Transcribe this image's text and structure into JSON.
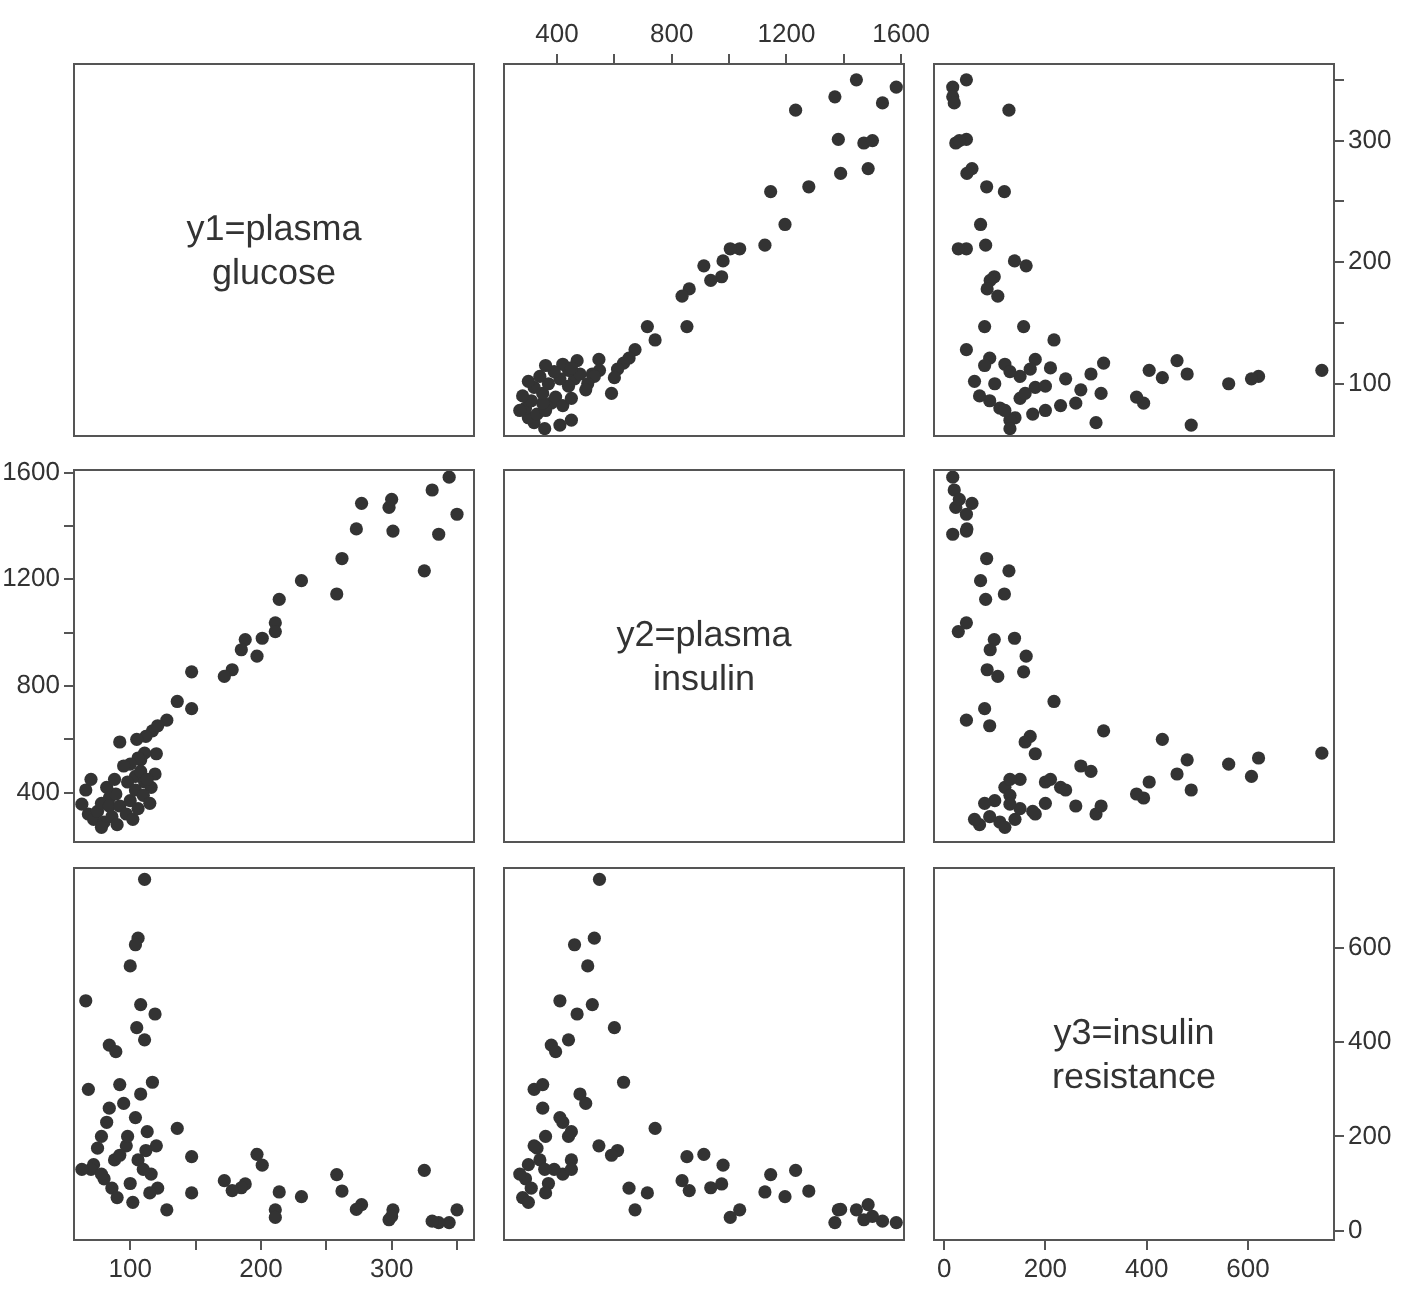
{
  "chart_data": [
    {
      "type": "other",
      "annotations": [
        "y1=plasma glucose"
      ]
    },
    {
      "type": "scatter",
      "color": "#333333",
      "marker": "circle",
      "xlim": [
        215,
        1610
      ],
      "ylim": [
        57,
        363
      ],
      "xticks": [
        400,
        {
          "value": 600,
          "label": null
        },
        800,
        {
          "value": 1000,
          "label": null
        },
        1200,
        {
          "value": 1400,
          "label": null
        },
        1600
      ],
      "tick_labels": "x",
      "x": [
        1444,
        1583,
        1369,
        1535,
        1232,
        1381,
        1470,
        1500,
        1485,
        1389,
        1278,
        1145,
        1195,
        1125,
        1037,
        1004,
        979,
        912,
        974,
        936,
        861,
        836,
        853,
        742,
        715,
        632,
        672,
        651,
        546,
        611,
        548,
        523,
        530,
        461,
        507,
        410,
        470,
        440,
        600,
        380,
        395,
        320,
        300,
        330,
        360,
        290,
        420,
        350,
        310,
        450,
        280,
        350,
        420,
        500,
        320,
        440,
        370,
        300,
        410,
        340,
        480,
        390,
        450,
        360,
        450,
        270,
        590,
        357
      ],
      "values": [
        350,
        344,
        336,
        331,
        325,
        301,
        298,
        300,
        277,
        273,
        262,
        258,
        231,
        214,
        211,
        211,
        201,
        197,
        188,
        185,
        178,
        172,
        147,
        136,
        147,
        117,
        128,
        121,
        120,
        112,
        111,
        108,
        106,
        104,
        100,
        66,
        119,
        111,
        105,
        84,
        89,
        68,
        72,
        75,
        78,
        80,
        82,
        84,
        86,
        88,
        90,
        92,
        116,
        95,
        97,
        98,
        100,
        102,
        104,
        106,
        108,
        110,
        113,
        115,
        70,
        78,
        92,
        63
      ]
    },
    {
      "type": "scatter",
      "color": "#333333",
      "marker": "circle",
      "xlim": [
        -20,
        770
      ],
      "ylim": [
        57,
        363
      ],
      "yticks": [
        100,
        {
          "value": 150,
          "label": null
        },
        200,
        {
          "value": 250,
          "label": null
        },
        300,
        {
          "value": 350,
          "label": null
        }
      ],
      "tick_labels": "y",
      "x": [
        44,
        17,
        17,
        20,
        128,
        44,
        23,
        30,
        55,
        45,
        84,
        119,
        72,
        82,
        44,
        28,
        139,
        162,
        99,
        91,
        85,
        106,
        157,
        217,
        80,
        315,
        44,
        90,
        180,
        170,
        746,
        480,
        621,
        607,
        562,
        488,
        460,
        405,
        431,
        394,
        380,
        300,
        140,
        175,
        200,
        110,
        230,
        260,
        90,
        150,
        70,
        310,
        120,
        270,
        180,
        200,
        100,
        60,
        240,
        150,
        290,
        130,
        210,
        80,
        130,
        120,
        160,
        130
      ],
      "values": [
        350,
        344,
        336,
        331,
        325,
        301,
        298,
        300,
        277,
        273,
        262,
        258,
        231,
        214,
        211,
        211,
        201,
        197,
        188,
        185,
        178,
        172,
        147,
        136,
        147,
        117,
        128,
        121,
        120,
        112,
        111,
        108,
        106,
        104,
        100,
        66,
        119,
        111,
        105,
        84,
        89,
        68,
        72,
        75,
        78,
        80,
        82,
        84,
        86,
        88,
        90,
        92,
        116,
        95,
        97,
        98,
        100,
        102,
        104,
        106,
        108,
        110,
        113,
        115,
        70,
        78,
        92,
        63
      ]
    },
    {
      "type": "scatter",
      "color": "#333333",
      "marker": "circle",
      "xlim": [
        57,
        363
      ],
      "ylim": [
        215,
        1610
      ],
      "yticks": [
        400,
        {
          "value": 600,
          "label": null
        },
        800,
        {
          "value": 1000,
          "label": null
        },
        1200,
        {
          "value": 1400,
          "label": null
        },
        1600
      ],
      "tick_labels": "y",
      "x": [
        350,
        344,
        336,
        331,
        325,
        301,
        298,
        300,
        277,
        273,
        262,
        258,
        231,
        214,
        211,
        211,
        201,
        197,
        188,
        185,
        178,
        172,
        147,
        136,
        147,
        117,
        128,
        121,
        120,
        112,
        111,
        108,
        106,
        104,
        100,
        66,
        119,
        111,
        105,
        84,
        89,
        68,
        72,
        75,
        78,
        80,
        82,
        84,
        86,
        88,
        90,
        92,
        116,
        95,
        97,
        98,
        100,
        102,
        104,
        106,
        108,
        110,
        113,
        115,
        70,
        78,
        92,
        63
      ],
      "values": [
        1444,
        1583,
        1369,
        1535,
        1232,
        1381,
        1470,
        1500,
        1485,
        1389,
        1278,
        1145,
        1195,
        1125,
        1037,
        1004,
        979,
        912,
        974,
        936,
        861,
        836,
        853,
        742,
        715,
        632,
        672,
        651,
        546,
        611,
        548,
        523,
        530,
        461,
        507,
        410,
        470,
        440,
        600,
        380,
        395,
        320,
        300,
        330,
        360,
        290,
        420,
        350,
        310,
        450,
        280,
        350,
        420,
        500,
        320,
        440,
        370,
        300,
        410,
        340,
        480,
        390,
        450,
        360,
        450,
        270,
        590,
        357
      ]
    },
    {
      "type": "other",
      "annotations": [
        "y2=plasma insulin"
      ]
    },
    {
      "type": "scatter",
      "color": "#333333",
      "marker": "circle",
      "xlim": [
        -20,
        770
      ],
      "ylim": [
        215,
        1610
      ],
      "tick_labels": false,
      "x": [
        44,
        17,
        17,
        20,
        128,
        44,
        23,
        30,
        55,
        45,
        84,
        119,
        72,
        82,
        44,
        28,
        139,
        162,
        99,
        91,
        85,
        106,
        157,
        217,
        80,
        315,
        44,
        90,
        180,
        170,
        746,
        480,
        621,
        607,
        562,
        488,
        460,
        405,
        431,
        394,
        380,
        300,
        140,
        175,
        200,
        110,
        230,
        260,
        90,
        150,
        70,
        310,
        120,
        270,
        180,
        200,
        100,
        60,
        240,
        150,
        290,
        130,
        210,
        80,
        130,
        120,
        160,
        130
      ],
      "values": [
        1444,
        1583,
        1369,
        1535,
        1232,
        1381,
        1470,
        1500,
        1485,
        1389,
        1278,
        1145,
        1195,
        1125,
        1037,
        1004,
        979,
        912,
        974,
        936,
        861,
        836,
        853,
        742,
        715,
        632,
        672,
        651,
        546,
        611,
        548,
        523,
        530,
        461,
        507,
        410,
        470,
        440,
        600,
        380,
        395,
        320,
        300,
        330,
        360,
        290,
        420,
        350,
        310,
        450,
        280,
        350,
        420,
        500,
        320,
        440,
        370,
        300,
        410,
        340,
        480,
        390,
        450,
        360,
        450,
        270,
        590,
        357
      ]
    },
    {
      "type": "scatter",
      "color": "#333333",
      "marker": "circle",
      "xlim": [
        57,
        363
      ],
      "ylim": [
        -20,
        770
      ],
      "xticks": [
        100,
        {
          "value": 150,
          "label": null
        },
        200,
        {
          "value": 250,
          "label": null
        },
        300,
        {
          "value": 350,
          "label": null
        }
      ],
      "tick_labels": "x",
      "x": [
        350,
        344,
        336,
        331,
        325,
        301,
        298,
        300,
        277,
        273,
        262,
        258,
        231,
        214,
        211,
        211,
        201,
        197,
        188,
        185,
        178,
        172,
        147,
        136,
        147,
        117,
        128,
        121,
        120,
        112,
        111,
        108,
        106,
        104,
        100,
        66,
        119,
        111,
        105,
        84,
        89,
        68,
        72,
        75,
        78,
        80,
        82,
        84,
        86,
        88,
        90,
        92,
        116,
        95,
        97,
        98,
        100,
        102,
        104,
        106,
        108,
        110,
        113,
        115,
        70,
        78,
        92,
        63
      ],
      "values": [
        44,
        17,
        17,
        20,
        128,
        44,
        23,
        30,
        55,
        45,
        84,
        119,
        72,
        82,
        44,
        28,
        139,
        162,
        99,
        91,
        85,
        106,
        157,
        217,
        80,
        315,
        44,
        90,
        180,
        170,
        746,
        480,
        621,
        607,
        562,
        488,
        460,
        405,
        431,
        394,
        380,
        300,
        140,
        175,
        200,
        110,
        230,
        260,
        90,
        150,
        70,
        310,
        120,
        270,
        180,
        200,
        100,
        60,
        240,
        150,
        290,
        130,
        210,
        80,
        130,
        120,
        160,
        130
      ]
    },
    {
      "type": "scatter",
      "color": "#333333",
      "marker": "circle",
      "xlim": [
        215,
        1610
      ],
      "ylim": [
        -20,
        770
      ],
      "tick_labels": false,
      "x": [
        1444,
        1583,
        1369,
        1535,
        1232,
        1381,
        1470,
        1500,
        1485,
        1389,
        1278,
        1145,
        1195,
        1125,
        1037,
        1004,
        979,
        912,
        974,
        936,
        861,
        836,
        853,
        742,
        715,
        632,
        672,
        651,
        546,
        611,
        548,
        523,
        530,
        461,
        507,
        410,
        470,
        440,
        600,
        380,
        395,
        320,
        300,
        330,
        360,
        290,
        420,
        350,
        310,
        450,
        280,
        350,
        420,
        500,
        320,
        440,
        370,
        300,
        410,
        340,
        480,
        390,
        450,
        360,
        450,
        270,
        590,
        357
      ],
      "values": [
        44,
        17,
        17,
        20,
        128,
        44,
        23,
        30,
        55,
        45,
        84,
        119,
        72,
        82,
        44,
        28,
        139,
        162,
        99,
        91,
        85,
        106,
        157,
        217,
        80,
        315,
        44,
        90,
        180,
        170,
        746,
        480,
        621,
        607,
        562,
        488,
        460,
        405,
        431,
        394,
        380,
        300,
        140,
        175,
        200,
        110,
        230,
        260,
        90,
        150,
        70,
        310,
        120,
        270,
        180,
        200,
        100,
        60,
        240,
        150,
        290,
        130,
        210,
        80,
        130,
        120,
        160,
        130
      ]
    },
    {
      "type": "scatter",
      "annotations": [
        "y3=insulin resistance"
      ],
      "xlim": [
        -20,
        770
      ],
      "xticks": [
        0,
        200,
        400,
        600
      ],
      "ylim": [
        -20,
        770
      ],
      "yticks": [
        0,
        200,
        400,
        600
      ]
    }
  ]
}
